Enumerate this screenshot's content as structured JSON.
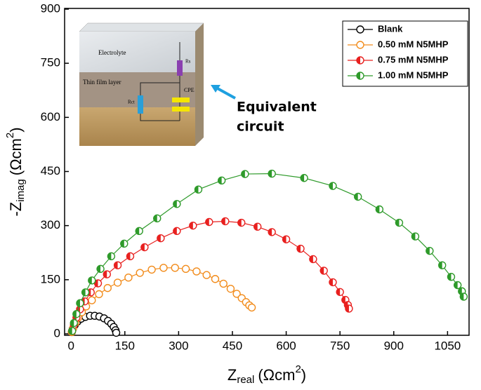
{
  "chart_data": {
    "type": "scatter-line",
    "x_label": {
      "base": "Z",
      "sub": "real",
      "unit": "(Ωcm",
      "sup": "2",
      "close": ")"
    },
    "y_label": {
      "base": "-Z",
      "sub": "imag",
      "unit": "(Ωcm",
      "sup": "2",
      "close": ")"
    },
    "xlim": [
      -18,
      1110
    ],
    "ylim": [
      -4,
      902
    ],
    "xticks": [
      0,
      150,
      300,
      450,
      600,
      750,
      900,
      1050
    ],
    "yticks": [
      0,
      150,
      300,
      450,
      600,
      750,
      900
    ],
    "legend": "top-right",
    "series": [
      {
        "name": "Blank",
        "color": "#000000",
        "marker": "open",
        "x": [
          2,
          5,
          10,
          18,
          28,
          40,
          53,
          66,
          79,
          92,
          103,
          112,
          119,
          124,
          126
        ],
        "y": [
          5,
          14,
          24,
          34,
          42,
          47,
          50,
          50,
          48,
          43,
          36,
          28,
          19,
          10,
          3
        ]
      },
      {
        "name": "0.50 mM N5MHP",
        "color": "#f28c1c",
        "marker": "open",
        "x": [
          2,
          6,
          12,
          20,
          30,
          42,
          58,
          78,
          102,
          130,
          160,
          192,
          225,
          258,
          290,
          320,
          350,
          378,
          402,
          425,
          445,
          462,
          476,
          488,
          497,
          504
        ],
        "y": [
          5,
          16,
          30,
          45,
          60,
          76,
          93,
          110,
          127,
          142,
          156,
          169,
          178,
          183,
          183,
          180,
          173,
          163,
          152,
          139,
          125,
          111,
          99,
          88,
          79,
          73
        ]
      },
      {
        "name": "0.75 mM N5MHP",
        "color": "#e8201f",
        "marker": "half",
        "x": [
          3,
          8,
          15,
          25,
          38,
          55,
          75,
          100,
          130,
          165,
          205,
          250,
          295,
          340,
          385,
          430,
          475,
          520,
          560,
          600,
          640,
          675,
          705,
          730,
          750,
          765,
          772,
          775
        ],
        "y": [
          8,
          25,
          45,
          68,
          90,
          115,
          140,
          165,
          190,
          215,
          240,
          265,
          285,
          300,
          310,
          312,
          308,
          297,
          282,
          262,
          236,
          207,
          175,
          143,
          116,
          94,
          80,
          70
        ]
      },
      {
        "name": "1.00 mM N5MHP",
        "color": "#2e9a2a",
        "marker": "half",
        "x": [
          3,
          8,
          15,
          25,
          40,
          58,
          82,
          112,
          148,
          190,
          240,
          295,
          355,
          420,
          485,
          560,
          650,
          730,
          800,
          860,
          915,
          960,
          1000,
          1035,
          1060,
          1078,
          1090,
          1095
        ],
        "y": [
          8,
          30,
          55,
          85,
          115,
          148,
          180,
          215,
          250,
          285,
          320,
          360,
          400,
          425,
          443,
          444,
          432,
          410,
          380,
          345,
          308,
          270,
          230,
          190,
          158,
          135,
          118,
          103
        ]
      }
    ],
    "inset": {
      "electrolyte": "Electrolyte",
      "film": "Thin film layer",
      "rs": "Rs",
      "rct": "Rct",
      "cpe": "CPE"
    },
    "annotation": [
      "Equivalent",
      "circuit"
    ]
  }
}
